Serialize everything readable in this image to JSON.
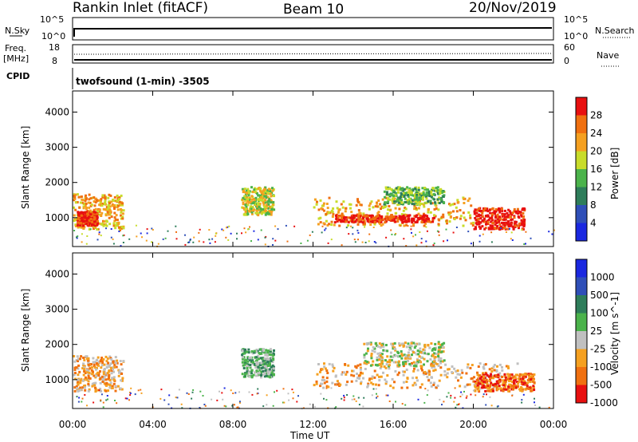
{
  "header": {
    "station": "Rankin Inlet (fitACF)",
    "beam": "Beam 10",
    "date": "20/Nov/2019"
  },
  "top_panels": {
    "nsky_label": "N.Sky",
    "nsky_ticks": [
      "10^5",
      "10^0"
    ],
    "nsearch_label": "N.Search",
    "nsearch_ticks": [
      "10^5",
      "10^0"
    ],
    "freq_label": "Freq.",
    "freq_unit": "[MHz]",
    "freq_ticks": [
      "18",
      "8"
    ],
    "nave_label": "Nave",
    "nave_ticks": [
      "60",
      "0"
    ],
    "cpid_label": "CPID",
    "cpid_value": "twofsound (1-min) -3505"
  },
  "chart_data": [
    {
      "type": "heatmap",
      "name": "power",
      "ylabel": "Slant Range [km]",
      "yticks": [
        1000,
        2000,
        3000,
        4000
      ],
      "ylim": [
        180,
        4600
      ],
      "xlim": [
        0,
        24
      ],
      "colorbar": {
        "label": "Power [dB]",
        "ticks": [
          "4",
          "8",
          "12",
          "16",
          "20",
          "24",
          "28"
        ],
        "colors": [
          "#1a28e0",
          "#2f4fb8",
          "#2e7d5a",
          "#4bb34b",
          "#c8dc2a",
          "#f5a020",
          "#f07010",
          "#e81010"
        ]
      },
      "blobs": [
        {
          "x0": 0.0,
          "x1": 2.5,
          "y0": 700,
          "y1": 1700,
          "level": 5
        },
        {
          "x0": 0.2,
          "x1": 1.2,
          "y0": 800,
          "y1": 1200,
          "level": 7
        },
        {
          "x0": 8.4,
          "x1": 10.0,
          "y0": 1100,
          "y1": 1900,
          "level": 4
        },
        {
          "x0": 12.0,
          "x1": 20.0,
          "y0": 800,
          "y1": 1600,
          "level": 5
        },
        {
          "x0": 13.0,
          "x1": 18.0,
          "y0": 900,
          "y1": 1100,
          "level": 7
        },
        {
          "x0": 20.0,
          "x1": 22.5,
          "y0": 700,
          "y1": 1300,
          "level": 7
        },
        {
          "x0": 15.5,
          "x1": 18.5,
          "y0": 1400,
          "y1": 1900,
          "level": 3
        }
      ]
    },
    {
      "type": "heatmap",
      "name": "velocity",
      "ylabel": "Slant Range [km]",
      "xlabel": "Time UT",
      "xticks": [
        "00:00",
        "04:00",
        "08:00",
        "12:00",
        "16:00",
        "20:00",
        "00:00"
      ],
      "yticks": [
        1000,
        2000,
        3000,
        4000
      ],
      "ylim": [
        180,
        4600
      ],
      "xlim": [
        0,
        24
      ],
      "colorbar": {
        "label": "Velocity [m s^-1]",
        "ticks": [
          "1000",
          "500",
          "100",
          "25",
          "-25",
          "-100",
          "-500",
          "-1000"
        ],
        "colors": [
          "#1a28e0",
          "#2f4fb8",
          "#2e7d5a",
          "#4bb34b",
          "#c0c0c0",
          "#f5a020",
          "#f07010",
          "#e81010"
        ]
      },
      "blobs": [
        {
          "x0": 0.0,
          "x1": 2.5,
          "y0": 700,
          "y1": 1700,
          "level": 5
        },
        {
          "x0": 8.4,
          "x1": 10.0,
          "y0": 1100,
          "y1": 1900,
          "level": 3
        },
        {
          "x0": 12.0,
          "x1": 22.5,
          "y0": 800,
          "y1": 1500,
          "level": 5
        },
        {
          "x0": 14.5,
          "x1": 18.5,
          "y0": 1400,
          "y1": 2100,
          "level": 4
        },
        {
          "x0": 20.0,
          "x1": 23.0,
          "y0": 700,
          "y1": 1200,
          "level": 6
        }
      ]
    }
  ]
}
